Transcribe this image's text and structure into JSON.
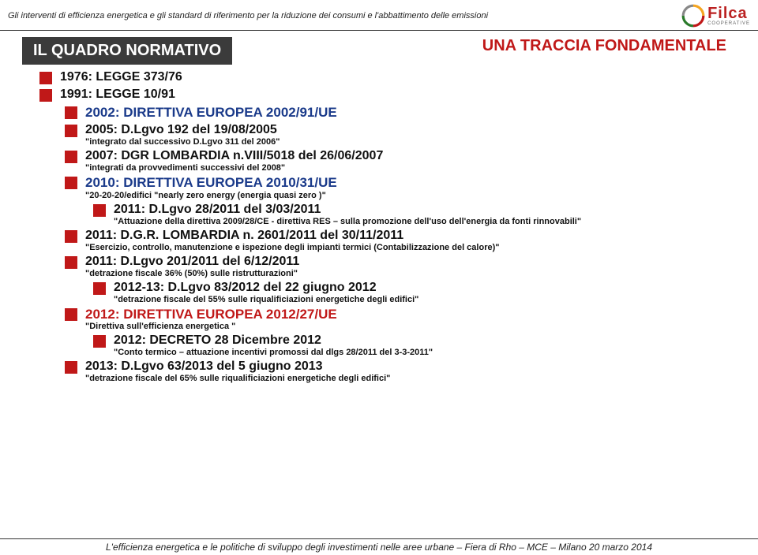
{
  "header": "Gli interventi di efficienza energetica e gli standard di riferimento per la riduzione dei consumi e l'abbattimento delle emissioni",
  "logo": {
    "name": "Filca",
    "sub": "COOPERATIVE",
    "swirl_colors": [
      "#f5a623",
      "#c01818",
      "#2a7a2a"
    ]
  },
  "title": "IL QUADRO NORMATIVO",
  "subtitle": "UNA TRACCIA FONDAMENTALE",
  "items": [
    {
      "lvl": 1,
      "text": "1976: LEGGE 373/76"
    },
    {
      "lvl": 1,
      "text": "1991: LEGGE 10/91"
    },
    {
      "lvl": 2,
      "text": "2002: DIRETTIVA EUROPEA 2002/91/UE",
      "color": "blue"
    },
    {
      "lvl": 2,
      "text": "2005: D.Lgvo 192 del 19/08/2005",
      "quote": "\"integrato dal successivo D.Lgvo 311 del 2006\""
    },
    {
      "lvl": 2,
      "text": "2007: DGR LOMBARDIA n.VIII/5018 del 26/06/2007",
      "quote": "\"integrati da provvedimenti successivi del 2008\""
    },
    {
      "lvl": 2,
      "text": "2010: DIRETTIVA EUROPEA 2010/31/UE",
      "color": "blue",
      "quote": "\"20-20-20/edifici \"nearly zero energy (energia quasi zero )\""
    },
    {
      "lvl": 3,
      "text": "2011: D.Lgvo 28/2011 del 3/03/2011",
      "quote": "\"Attuazione della direttiva 2009/28/CE - direttiva RES – sulla promozione dell'uso dell'energia da fonti rinnovabili\""
    },
    {
      "lvl": 2,
      "text": "2011: D.G.R. LOMBARDIA n. 2601/2011 del 30/11/2011",
      "quote": "\"Esercizio, controllo, manutenzione e ispezione degli impianti termici (Contabilizzazione del calore)\""
    },
    {
      "lvl": 2,
      "text": "2011: D.Lgvo 201/2011 del 6/12/2011",
      "quote": "\"detrazione fiscale 36% (50%) sulle ristrutturazioni\""
    },
    {
      "lvl": 3,
      "text": "2012-13: D.Lgvo 83/2012 del 22 giugno 2012",
      "quote": "\"detrazione fiscale del 55% sulle riqualificiazioni energetiche degli edifici\""
    },
    {
      "lvl": 2,
      "text": "2012: DIRETTIVA EUROPEA 2012/27/UE",
      "color": "red",
      "quote": "\"Direttiva sull'efficienza energetica \""
    },
    {
      "lvl": 3,
      "text": "2012: DECRETO 28 Dicembre 2012",
      "quote": "\"Conto termico – attuazione incentivi promossi dal dlgs 28/2011 del 3-3-2011\""
    },
    {
      "lvl": 2,
      "text": "2013: D.Lgvo 63/2013 del 5 giugno 2013",
      "quote": "\"detrazione fiscale del 65% sulle riqualificiazioni energetiche degli edifici\""
    }
  ],
  "footer": "L'efficienza energetica e le politiche di sviluppo degli investimenti nelle aree urbane – Fiera di Rho – MCE – Milano 20 marzo 2014"
}
